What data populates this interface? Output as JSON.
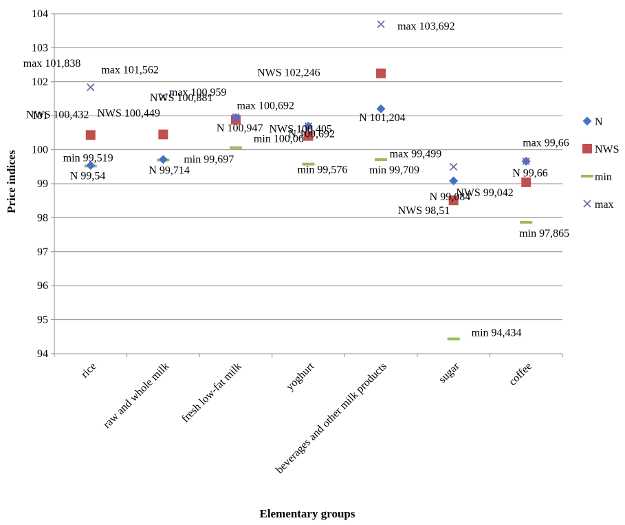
{
  "chart_data": {
    "type": "scatter",
    "title": "",
    "xlabel": "Elementary groups",
    "ylabel": "Price indices",
    "ylim": [
      94,
      104
    ],
    "y_ticks": [
      94,
      95,
      96,
      97,
      98,
      99,
      100,
      101,
      102,
      103,
      104
    ],
    "grid": true,
    "legend_position": "right",
    "categories": [
      "rice",
      "raw and whole milk",
      "fresh low-fat milk",
      "yoghurt",
      "beverages and other milk products",
      "sugar",
      "coffee"
    ],
    "series": [
      {
        "name": "N",
        "marker": "diamond",
        "color": "#4472C4",
        "values": [
          99.54,
          99.714,
          100.947,
          100.692,
          101.204,
          99.084,
          99.66
        ],
        "labels": [
          "N 99,54",
          "N 99,714",
          "N 100,947",
          "N 100,692",
          "N 101,204",
          "N 99,084",
          "N 99,66"
        ]
      },
      {
        "name": "NWS",
        "marker": "square",
        "color": "#C0504D",
        "values": [
          100.432,
          100.449,
          100.881,
          100.405,
          102.246,
          98.51,
          99.042
        ],
        "labels": [
          "NWS 100,432",
          "NWS 100,449",
          "NWS 100,881",
          "NWS 100,405",
          "NWS 102,246",
          "NWS 98,51",
          "NWS 99,042"
        ]
      },
      {
        "name": "min",
        "marker": "dash",
        "color": "#9BBB59",
        "values": [
          99.519,
          99.697,
          100.06,
          99.576,
          99.709,
          94.434,
          97.865
        ],
        "labels": [
          "min 99,519",
          "min 99,697",
          "min 100,06",
          "min 99,576",
          "min 99,709",
          "min 94,434",
          "min 97,865"
        ]
      },
      {
        "name": "max",
        "marker": "x",
        "color": "#8064A2",
        "values": [
          101.838,
          101.562,
          100.959,
          100.692,
          103.692,
          99.499,
          99.66
        ],
        "labels": [
          "max 101,838",
          "max 101,562",
          "max 100,959",
          "max 100,692",
          "max 103,692",
          "max 99,499",
          "max 99,66"
        ]
      }
    ]
  }
}
